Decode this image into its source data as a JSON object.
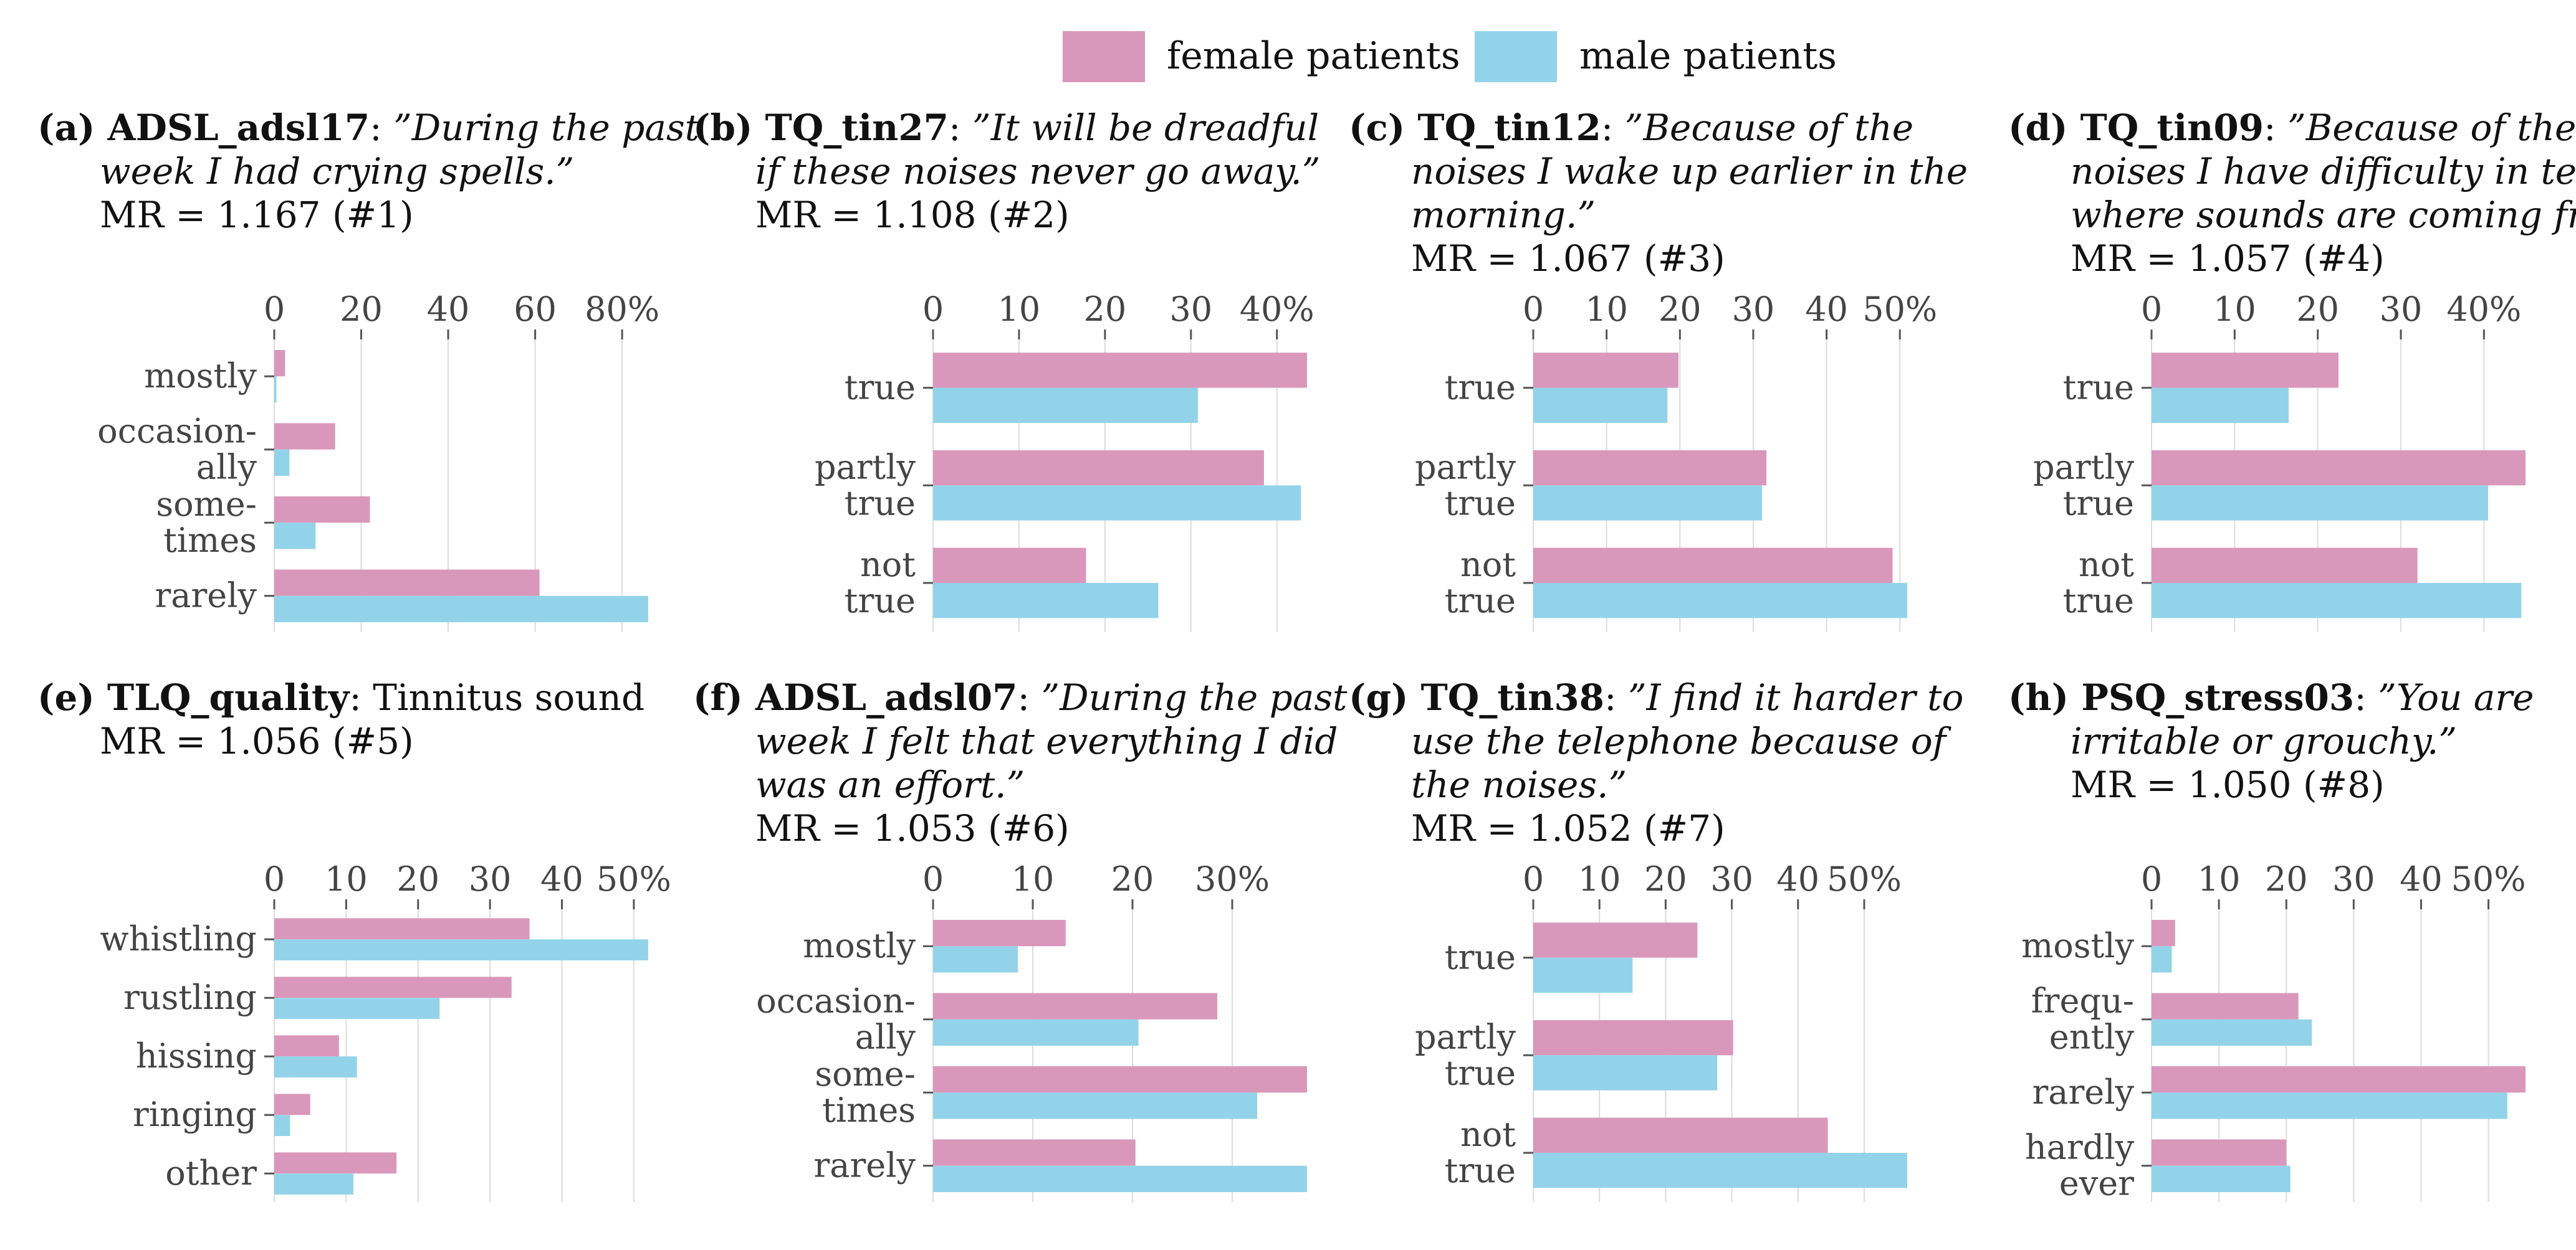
{
  "legend": {
    "female_label": "female patients",
    "male_label": "male patients"
  },
  "colors": {
    "female": "#d998bb",
    "male": "#93d3ea",
    "grid": "#dcdcdc",
    "axis": "#555555"
  },
  "chart_data": [
    {
      "type": "bar",
      "tag": "(a)",
      "variable": "ADSL_adsl17",
      "title_lines": [
        ": ”During the past",
        "week I had crying spells.”"
      ],
      "mr": "MR = 1.167 (#1)",
      "categories": [
        "mostly",
        "occasion-\nally",
        "some-\ntimes",
        "rarely"
      ],
      "ticks": [
        0,
        20,
        40,
        60,
        80
      ],
      "tick_labels": [
        "0",
        "20",
        "40",
        "60",
        "80%"
      ],
      "xlim": [
        0,
        86
      ],
      "series": [
        {
          "name": "female patients",
          "values": [
            2.5,
            14,
            22,
            61
          ]
        },
        {
          "name": "male patients",
          "values": [
            0.5,
            3.5,
            9.5,
            86
          ]
        }
      ]
    },
    {
      "type": "bar",
      "tag": "(b)",
      "variable": "TQ_tin27",
      "title_lines": [
        ": ”It will be dreadful",
        "if these noises never go away.”"
      ],
      "mr": "MR = 1.108 (#2)",
      "categories": [
        "true",
        "partly\ntrue",
        "not\ntrue"
      ],
      "ticks": [
        0,
        10,
        20,
        30,
        40
      ],
      "tick_labels": [
        "0",
        "10",
        "20",
        "30",
        "40%"
      ],
      "xlim": [
        0,
        43.5
      ],
      "series": [
        {
          "name": "female patients",
          "values": [
            43.5,
            38.5,
            17.8
          ]
        },
        {
          "name": "male patients",
          "values": [
            30.8,
            42.8,
            26.2
          ]
        }
      ]
    },
    {
      "type": "bar",
      "tag": "(c)",
      "variable": "TQ_tin12",
      "title_lines": [
        ": ”Because of the",
        "noises I wake up earlier in the",
        "morning.”"
      ],
      "mr": "MR = 1.067 (#3)",
      "categories": [
        "true",
        "partly\ntrue",
        "not\ntrue"
      ],
      "ticks": [
        0,
        10,
        20,
        30,
        40,
        50
      ],
      "tick_labels": [
        "0",
        "10",
        "20",
        "30",
        "40",
        "50%"
      ],
      "xlim": [
        0,
        51
      ],
      "series": [
        {
          "name": "female patients",
          "values": [
            19.8,
            31.8,
            49
          ]
        },
        {
          "name": "male patients",
          "values": [
            18.3,
            31.2,
            51
          ]
        }
      ]
    },
    {
      "type": "bar",
      "tag": "(d)",
      "variable": "TQ_tin09",
      "title_lines": [
        ": ”Because of the",
        "noises I have difficulty in telling",
        "where sounds are coming from.”"
      ],
      "mr": "MR = 1.057 (#4)",
      "categories": [
        "true",
        "partly\ntrue",
        "not\ntrue"
      ],
      "ticks": [
        0,
        10,
        20,
        30,
        40
      ],
      "tick_labels": [
        "0",
        "10",
        "20",
        "30",
        "40%"
      ],
      "xlim": [
        0,
        45
      ],
      "series": [
        {
          "name": "female patients",
          "values": [
            22.5,
            45,
            32
          ]
        },
        {
          "name": "male patients",
          "values": [
            16.5,
            40.5,
            44.5
          ]
        }
      ]
    },
    {
      "type": "bar",
      "tag": "(e)",
      "variable": "TLQ_quality",
      "title_lines": [
        ": Tinnitus sound"
      ],
      "title_plain": true,
      "mr": "MR = 1.056 (#5)",
      "categories": [
        "whistling",
        "rustling",
        "hissing",
        "ringing",
        "other"
      ],
      "ticks": [
        0,
        10,
        20,
        30,
        40,
        50
      ],
      "tick_labels": [
        "0",
        "10",
        "20",
        "30",
        "40",
        "50%"
      ],
      "xlim": [
        0,
        52
      ],
      "series": [
        {
          "name": "female patients",
          "values": [
            35.5,
            33,
            9,
            5,
            17
          ]
        },
        {
          "name": "male patients",
          "values": [
            52,
            23,
            11.5,
            2.2,
            11
          ]
        }
      ]
    },
    {
      "type": "bar",
      "tag": "(f)",
      "variable": "ADSL_adsl07",
      "title_lines": [
        ": ”During the past",
        "week I felt that everything I did",
        "was an effort.”"
      ],
      "mr": "MR = 1.053 (#6)",
      "categories": [
        "mostly",
        "occasion-\nally",
        "some-\ntimes",
        "rarely"
      ],
      "ticks": [
        0,
        10,
        20,
        30
      ],
      "tick_labels": [
        "0",
        "10",
        "20",
        "30%"
      ],
      "xlim": [
        0,
        37.5
      ],
      "series": [
        {
          "name": "female patients",
          "values": [
            13.3,
            28.5,
            37.5,
            20.3
          ]
        },
        {
          "name": "male patients",
          "values": [
            8.5,
            20.6,
            32.5,
            37.5
          ]
        }
      ]
    },
    {
      "type": "bar",
      "tag": "(g)",
      "variable": "TQ_tin38",
      "title_lines": [
        ": ”I find it harder to",
        "use the telephone because of",
        "the noises.”"
      ],
      "mr": "MR = 1.052 (#7)",
      "categories": [
        "true",
        "partly\ntrue",
        "not\ntrue"
      ],
      "ticks": [
        0,
        10,
        20,
        30,
        40,
        50
      ],
      "tick_labels": [
        "0",
        "10",
        "20",
        "30",
        "40",
        "50%"
      ],
      "xlim": [
        0,
        56.5
      ],
      "series": [
        {
          "name": "female patients",
          "values": [
            24.8,
            30.2,
            44.5
          ]
        },
        {
          "name": "male patients",
          "values": [
            15,
            27.8,
            56.5
          ]
        }
      ]
    },
    {
      "type": "bar",
      "tag": "(h)",
      "variable": "PSQ_stress03",
      "title_lines": [
        ": ”You are",
        "irritable or grouchy.”"
      ],
      "mr": "MR = 1.050 (#8)",
      "categories": [
        "mostly",
        "frequ-\nently",
        "rarely",
        "hardly\never"
      ],
      "ticks": [
        0,
        10,
        20,
        30,
        40,
        50
      ],
      "tick_labels": [
        "0",
        "10",
        "20",
        "30",
        "40",
        "50%"
      ],
      "xlim": [
        0,
        55.5
      ],
      "series": [
        {
          "name": "female patients",
          "values": [
            3.5,
            21.8,
            55.5,
            20
          ]
        },
        {
          "name": "male patients",
          "values": [
            3,
            23.8,
            52.8,
            20.6
          ]
        }
      ]
    }
  ]
}
